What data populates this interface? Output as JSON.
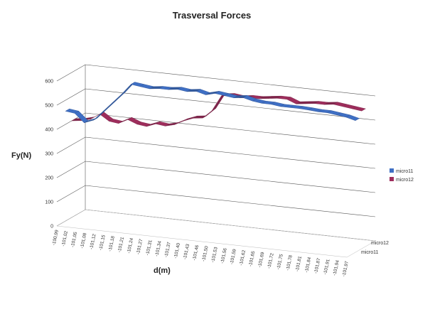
{
  "chart_data": {
    "type": "line",
    "subtype": "3d-ribbon",
    "title": "Trasversal Forces",
    "xlabel": "d(m)",
    "ylabel": "Fy(N)",
    "ylim": [
      0,
      600
    ],
    "yticks": [
      0,
      100,
      200,
      300,
      400,
      500,
      600
    ],
    "depth_labels": [
      "micro11",
      "micro12"
    ],
    "categories": [
      "-100,99",
      "-101,02",
      "-101,05",
      "-101,08",
      "-101,12",
      "-101,15",
      "-101,18",
      "-101,21",
      "-101,24",
      "-101,27",
      "-101,31",
      "-101,34",
      "-101,37",
      "-101,40",
      "-101,43",
      "-101,46",
      "-101,50",
      "-101,53",
      "-101,56",
      "-101,59",
      "-101,62",
      "-101,65",
      "-101,69",
      "-101,72",
      "-101,75",
      "-101,78",
      "-101,81",
      "-101,84",
      "-101,87",
      "-101,91",
      "-101,94",
      "-101,97"
    ],
    "series": [
      {
        "name": "micro11",
        "color": "#3f6fc4",
        "values": [
          455,
          450,
          415,
          430,
          470,
          510,
          550,
          595,
          590,
          585,
          590,
          590,
          595,
          590,
          595,
          585,
          595,
          590,
          585,
          590,
          580,
          575,
          575,
          570,
          570,
          570,
          568,
          565,
          565,
          560,
          555,
          545
        ]
      },
      {
        "name": "micro12",
        "color": "#9e2d5c",
        "values": [
          400,
          405,
          415,
          440,
          415,
          410,
          430,
          415,
          410,
          425,
          420,
          430,
          450,
          465,
          470,
          505,
          570,
          575,
          570,
          575,
          575,
          580,
          585,
          585,
          570,
          575,
          580,
          580,
          585,
          580,
          575,
          570
        ]
      }
    ],
    "grid": true,
    "legend": "right"
  }
}
